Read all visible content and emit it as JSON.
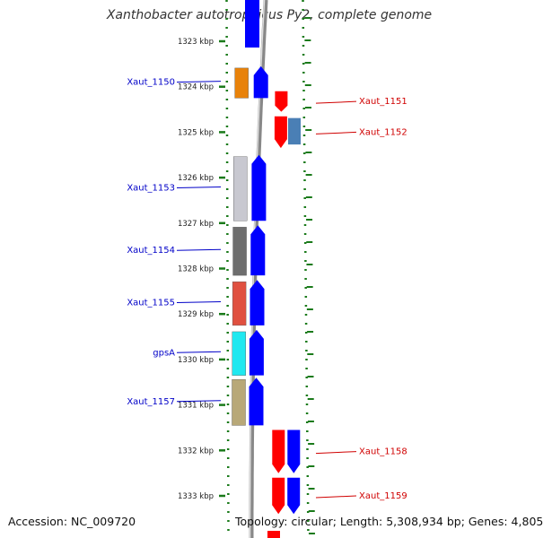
{
  "title": "Xanthobacter autotrophicus Py2, complete genome",
  "accession": "Accession: NC_009720",
  "topology": "Topology: circular; Length: 5,308,934 bp; Genes: 4,805",
  "scale": [
    {
      "kbp": 1323,
      "label": "1323 kbp"
    },
    {
      "kbp": 1324,
      "label": "1324 kbp"
    },
    {
      "kbp": 1325,
      "label": "1325 kbp"
    },
    {
      "kbp": 1326,
      "label": "1326 kbp"
    },
    {
      "kbp": 1327,
      "label": "1327 kbp"
    },
    {
      "kbp": 1328,
      "label": "1328 kbp"
    },
    {
      "kbp": 1329,
      "label": "1329 kbp"
    },
    {
      "kbp": 1330,
      "label": "1330 kbp"
    },
    {
      "kbp": 1331,
      "label": "1331 kbp"
    },
    {
      "kbp": 1332,
      "label": "1332 kbp"
    },
    {
      "kbp": 1333,
      "label": "1333 kbp"
    }
  ],
  "genes": [
    {
      "name": "Xaut_1150",
      "strand": "+",
      "start_kbp": 1323.55,
      "end_kbp": 1324.25,
      "color": "#e8820a",
      "labeled": true
    },
    {
      "name": "Xaut_1151",
      "strand": "-",
      "start_kbp": 1324.1,
      "end_kbp": 1324.55,
      "color": "#ff2a2a",
      "labeled": true
    },
    {
      "name": "Xaut_1152",
      "strand": "-",
      "start_kbp": 1324.65,
      "end_kbp": 1325.35,
      "color": "#4a7fb5",
      "labeled": true
    },
    {
      "name": "Xaut_1153",
      "strand": "+",
      "start_kbp": 1325.5,
      "end_kbp": 1326.95,
      "color": "#c8c8d0",
      "labeled": true
    },
    {
      "name": "Xaut_1154",
      "strand": "+",
      "start_kbp": 1327.05,
      "end_kbp": 1328.15,
      "color": "#6e6e6e",
      "labeled": true
    },
    {
      "name": "Xaut_1155",
      "strand": "+",
      "start_kbp": 1328.25,
      "end_kbp": 1329.25,
      "color": "#e05040",
      "labeled": true
    },
    {
      "name": "gpsA",
      "strand": "+",
      "start_kbp": 1329.35,
      "end_kbp": 1330.35,
      "color": "#20e8f0",
      "labeled": true
    },
    {
      "name": "Xaut_1157",
      "strand": "+",
      "start_kbp": 1330.4,
      "end_kbp": 1331.45,
      "color": "#b8a878",
      "labeled": true
    },
    {
      "name": "Xaut_1158",
      "strand": "-",
      "start_kbp": 1331.55,
      "end_kbp": 1332.5,
      "color": "#ff2a2a",
      "labeled": true
    },
    {
      "name": "Xaut_1159",
      "strand": "-",
      "start_kbp": 1332.6,
      "end_kbp": 1333.4,
      "color": "#ff2a2a",
      "labeled": true
    }
  ],
  "colors": {
    "forward_cds": "#0000ff",
    "reverse_cds": "#ff0000",
    "backbone": "#888888",
    "ruler_dots": "#1a7a1a",
    "label_forward": "#0000c8",
    "label_reverse": "#d00000"
  }
}
